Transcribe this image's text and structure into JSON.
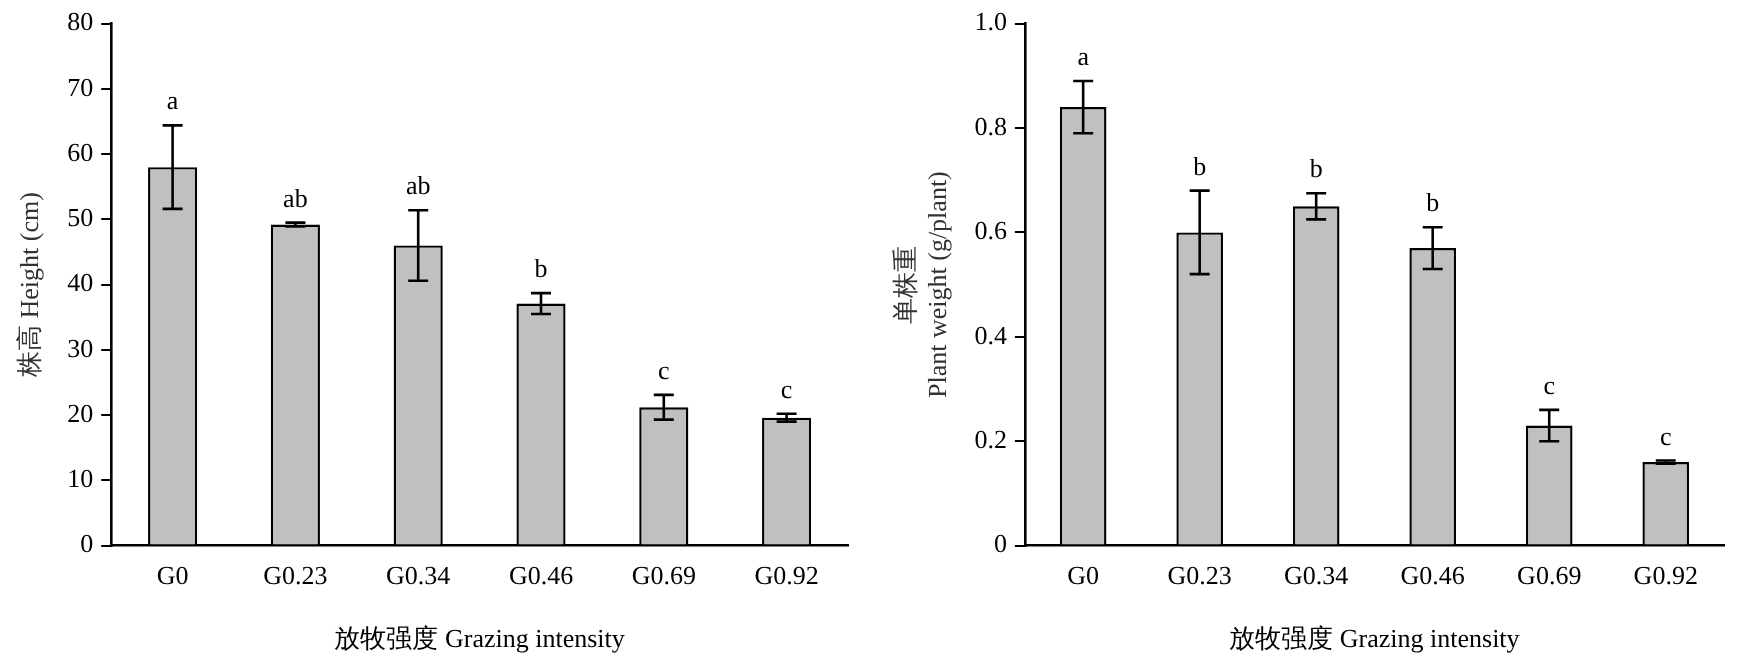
{
  "chart_data": [
    {
      "type": "bar",
      "xlabel": "放牧强度 Grazing intensity",
      "ylabel": "株高 Height (cm)",
      "categories": [
        "G0",
        "G0.23",
        "G0.34",
        "G0.46",
        "G0.69",
        "G0.92"
      ],
      "values": [
        58.0,
        49.2,
        46.0,
        37.1,
        21.2,
        19.6
      ],
      "errors": [
        6.4,
        0.3,
        5.4,
        1.6,
        1.9,
        0.6
      ],
      "color": "#c0c0c0",
      "ylim": [
        0,
        80
      ],
      "yticks": [
        0,
        10,
        20,
        30,
        40,
        50,
        60,
        70,
        80
      ],
      "grid": false,
      "legend": false,
      "annotations": [
        "a",
        "ab",
        "ab",
        "b",
        "c",
        "c"
      ]
    },
    {
      "type": "bar",
      "xlabel": "放牧强度 Grazing intensity",
      "ylabel": "单株重\nPlant weight (g/plant)",
      "categories": [
        "G0",
        "G0.23",
        "G0.34",
        "G0.46",
        "G0.69",
        "G0.92"
      ],
      "values": [
        0.84,
        0.6,
        0.65,
        0.57,
        0.23,
        0.16
      ],
      "errors": [
        0.05,
        0.08,
        0.025,
        0.04,
        0.03,
        0.003
      ],
      "color": "#c0c0c0",
      "ylim": [
        0,
        1.0
      ],
      "yticks": [
        0,
        {
          "value": 0.2,
          "label": "0.2"
        },
        {
          "value": 0.4,
          "label": "0.4"
        },
        {
          "value": 0.6,
          "label": "0.6"
        },
        {
          "value": 0.8,
          "label": "0.8"
        },
        {
          "value": 1.0,
          "label": "1.0"
        }
      ],
      "grid": false,
      "legend": false,
      "annotations": [
        "a",
        "b",
        "b",
        "b",
        "c",
        "c"
      ]
    }
  ]
}
